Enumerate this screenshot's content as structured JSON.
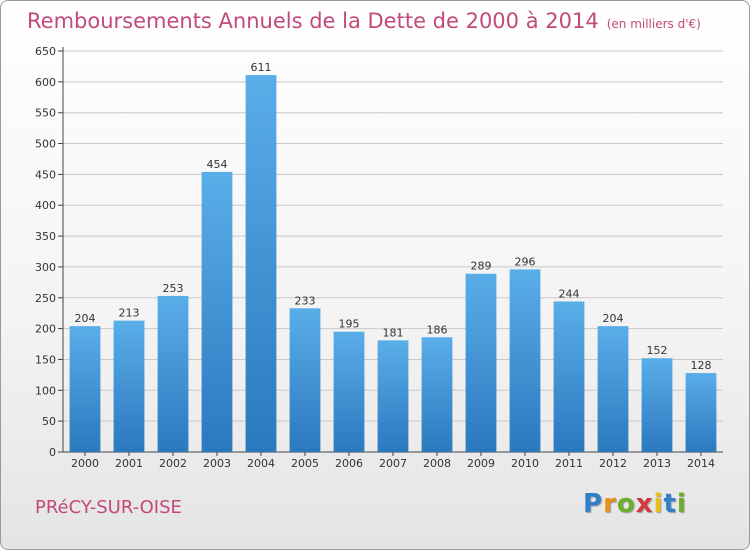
{
  "header": {
    "title": "Remboursements Annuels de la Dette de 2000 à 2014",
    "subtitle": "(en milliers d'€)"
  },
  "footer": {
    "commune": "PRéCY-SUR-OISE",
    "logo_letters": [
      "P",
      "r",
      "o",
      "x",
      "i",
      "t",
      "i"
    ]
  },
  "colors": {
    "title": "#c2497a",
    "bar_top": "#5aaee8",
    "bar_bottom": "#2b78bf"
  },
  "chart_data": {
    "type": "bar",
    "categories": [
      "2000",
      "2001",
      "2002",
      "2003",
      "2004",
      "2005",
      "2006",
      "2007",
      "2008",
      "2009",
      "2010",
      "2011",
      "2012",
      "2013",
      "2014"
    ],
    "values": [
      204,
      213,
      253,
      454,
      611,
      233,
      195,
      181,
      186,
      289,
      296,
      244,
      204,
      152,
      128
    ],
    "title": "Remboursements Annuels de la Dette de 2000 à 2014",
    "xlabel": "",
    "ylabel": "",
    "ylim": [
      0,
      650
    ],
    "yticks": [
      0,
      50,
      100,
      150,
      200,
      250,
      300,
      350,
      400,
      450,
      500,
      550,
      600,
      650
    ],
    "grid": true
  }
}
